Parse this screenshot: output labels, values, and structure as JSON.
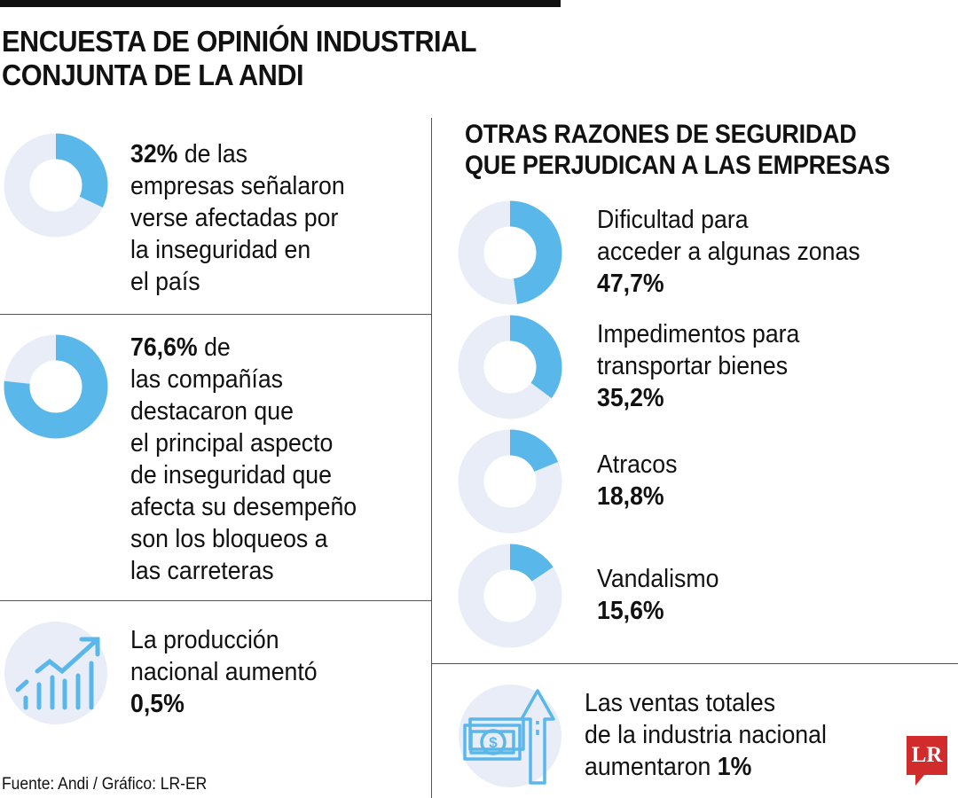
{
  "header": {
    "title_line1": "ENCUESTA DE OPINIÓN INDUSTRIAL",
    "title_line2": "CONJUNTA DE LA ANDI"
  },
  "colors": {
    "fill": "#5ab7ea",
    "track": "#e8edf7",
    "icon": "#5ab7ea"
  },
  "left": [
    {
      "value_label": "32%",
      "text_lines": [
        " de las",
        "empresas señalaron",
        "verse afectadas por",
        "la inseguridad en",
        "el país"
      ]
    },
    {
      "value_label": "76,6%",
      "text_lines": [
        " de",
        "las compañías",
        "destacaron que",
        "el principal aspecto",
        "de inseguridad que",
        "afecta su desempeño",
        "son los bloqueos a",
        "las carreteras"
      ]
    },
    {
      "text_lines": [
        "La producción",
        "nacional aumentó"
      ],
      "value_label": "0,5%",
      "icon": "rising-chart-icon"
    }
  ],
  "right": {
    "subtitle_line1": "OTRAS RAZONES DE SEGURIDAD",
    "subtitle_line2": "QUE PERJUDICAN A LAS EMPRESAS",
    "items": [
      {
        "text_lines": [
          "Dificultad para",
          "acceder a algunas zonas"
        ],
        "value_label": "47,7%"
      },
      {
        "text_lines": [
          "Impedimentos para",
          "transportar bienes"
        ],
        "value_label": "35,2%"
      },
      {
        "text_lines": [
          "Atracos"
        ],
        "value_label": "18,8%"
      },
      {
        "text_lines": [
          "Vandalismo"
        ],
        "value_label": "15,6%"
      }
    ],
    "sales": {
      "text_lines": [
        "Las ventas totales",
        "de la industria nacional",
        "aumentaron "
      ],
      "value_label": "1%",
      "icon": "money-arrow-up-icon"
    }
  },
  "footer": {
    "source": "Fuente: Andi / Gráfico: LR-ER",
    "logo": "LR"
  },
  "chart_data": {
    "type": "pie",
    "style": "donut",
    "charts": [
      {
        "label": "empresas afectadas por la inseguridad",
        "value": 32
      },
      {
        "label": "bloqueos a las carreteras",
        "value": 76.6
      },
      {
        "label": "Dificultad para acceder a algunas zonas",
        "value": 47.7
      },
      {
        "label": "Impedimentos para transportar bienes",
        "value": 35.2
      },
      {
        "label": "Atracos",
        "value": 18.8
      },
      {
        "label": "Vandalismo",
        "value": 15.6
      }
    ],
    "max": 100
  }
}
